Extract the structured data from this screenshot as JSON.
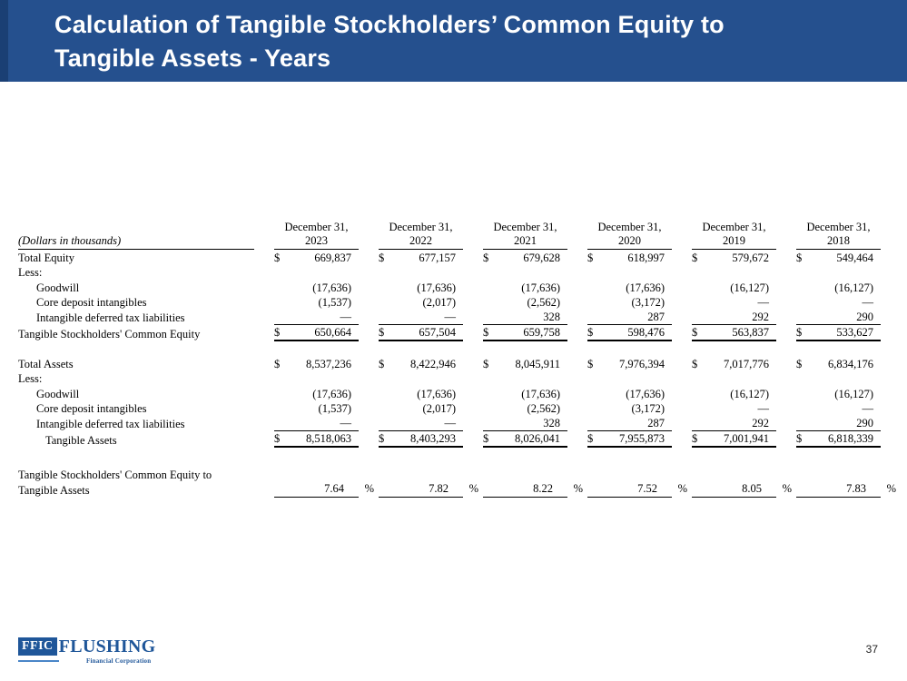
{
  "header": {
    "title_line1": "Calculation of Tangible Stockholders’ Common Equity to",
    "title_line2": "Tangible Assets - Years",
    "bg_color": "#25508E",
    "accent_color": "#1A3F74"
  },
  "table": {
    "units_label": "(Dollars in thousands)",
    "currency_symbol": "$",
    "percent_suffix": "%",
    "columns": [
      {
        "header_line1": "December 31,",
        "header_line2": "2023"
      },
      {
        "header_line1": "December 31,",
        "header_line2": "2022"
      },
      {
        "header_line1": "December 31,",
        "header_line2": "2021"
      },
      {
        "header_line1": "December 31,",
        "header_line2": "2020"
      },
      {
        "header_line1": "December 31,",
        "header_line2": "2019"
      },
      {
        "header_line1": "December 31,",
        "header_line2": "2018"
      }
    ],
    "rows": [
      {
        "label": "Total Equity",
        "indent": 0,
        "dollar": true,
        "style": "normal",
        "values": [
          "669,837",
          "677,157",
          "679,628",
          "618,997",
          "579,672",
          "549,464"
        ]
      },
      {
        "label": "Less:",
        "indent": 0,
        "dollar": false,
        "style": "normal",
        "values": []
      },
      {
        "label": "Goodwill",
        "indent": 1,
        "dollar": false,
        "style": "normal",
        "values": [
          "(17,636)",
          "(17,636)",
          "(17,636)",
          "(17,636)",
          "(16,127)",
          "(16,127)"
        ]
      },
      {
        "label": "Core deposit intangibles",
        "indent": 1,
        "dollar": false,
        "style": "normal",
        "values": [
          "(1,537)",
          "(2,017)",
          "(2,562)",
          "(3,172)",
          "—",
          "—"
        ]
      },
      {
        "label": "Intangible deferred tax liabilities",
        "indent": 1,
        "dollar": false,
        "style": "pre_total",
        "values": [
          "—",
          "—",
          "328",
          "287",
          "292",
          "290"
        ]
      },
      {
        "label": "Tangible Stockholders' Common Equity",
        "indent": 0,
        "dollar": true,
        "style": "total",
        "values": [
          "650,664",
          "657,504",
          "659,758",
          "598,476",
          "563,837",
          "533,627"
        ]
      },
      {
        "style": "spacer"
      },
      {
        "label": "Total Assets",
        "indent": 0,
        "dollar": true,
        "style": "normal",
        "values": [
          "8,537,236",
          "8,422,946",
          "8,045,911",
          "7,976,394",
          "7,017,776",
          "6,834,176"
        ]
      },
      {
        "label": "Less:",
        "indent": 0,
        "dollar": false,
        "style": "normal",
        "values": []
      },
      {
        "label": "Goodwill",
        "indent": 1,
        "dollar": false,
        "style": "normal",
        "values": [
          "(17,636)",
          "(17,636)",
          "(17,636)",
          "(17,636)",
          "(16,127)",
          "(16,127)"
        ]
      },
      {
        "label": "Core deposit intangibles",
        "indent": 1,
        "dollar": false,
        "style": "normal",
        "values": [
          "(1,537)",
          "(2,017)",
          "(2,562)",
          "(3,172)",
          "—",
          "—"
        ]
      },
      {
        "label": "Intangible deferred tax liabilities",
        "indent": 1,
        "dollar": false,
        "style": "pre_total",
        "values": [
          "—",
          "—",
          "328",
          "287",
          "292",
          "290"
        ]
      },
      {
        "label": "Tangible Assets",
        "indent": 2,
        "dollar": true,
        "style": "total",
        "values": [
          "8,518,063",
          "8,403,293",
          "8,026,041",
          "7,955,873",
          "7,001,941",
          "6,818,339"
        ]
      },
      {
        "style": "spacer"
      },
      {
        "label_line1": "Tangible Stockholders' Common Equity to",
        "label_line2": "Tangible Assets",
        "style": "percent",
        "values": [
          "7.64",
          "7.82",
          "8.22",
          "7.52",
          "8.05",
          "7.83"
        ]
      }
    ]
  },
  "footer": {
    "page_number": "37",
    "logo": {
      "acronym": "FFIC",
      "name": "FLUSHING",
      "subtitle": "Financial Corporation",
      "color": "#1F5699"
    }
  }
}
